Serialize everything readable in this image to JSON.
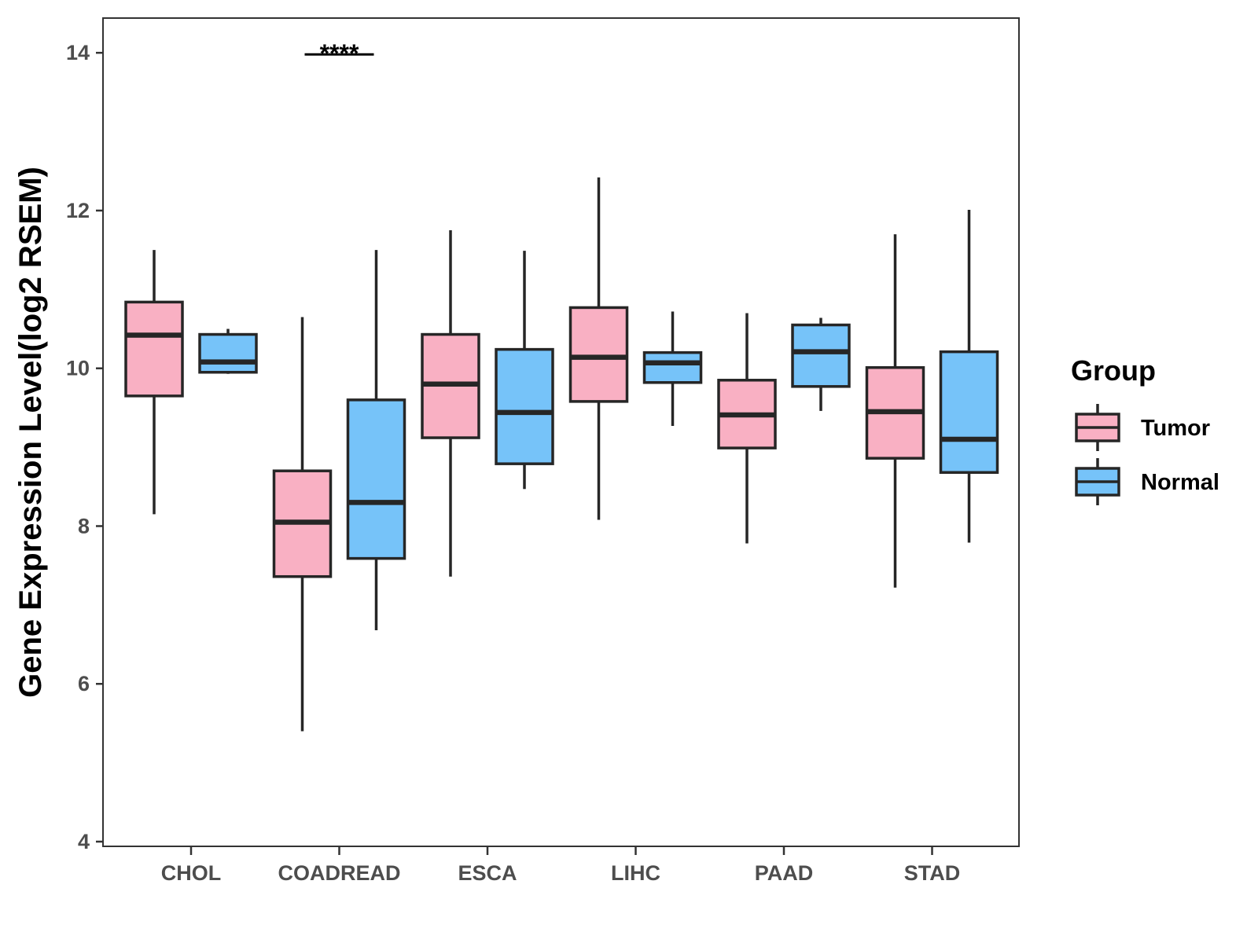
{
  "chart_data": {
    "type": "boxplot",
    "title": "",
    "xlabel": "",
    "ylabel": "Gene Expression Level(log2 RSEM)",
    "ylim": [
      4,
      14.5
    ],
    "yticks": [
      4,
      6,
      8,
      10,
      12,
      14
    ],
    "categories": [
      "CHOL",
      "COADREAD",
      "ESCA",
      "LIHC",
      "PAAD",
      "STAD"
    ],
    "legend": {
      "title": "Group",
      "position": "right"
    },
    "series": [
      {
        "name": "Tumor",
        "color": "#F9B0C3",
        "boxes": [
          {
            "min": 8.15,
            "q1": 9.65,
            "median": 10.42,
            "q3": 10.84,
            "max": 11.5
          },
          {
            "min": 5.4,
            "q1": 7.36,
            "median": 8.05,
            "q3": 8.7,
            "max": 10.65
          },
          {
            "min": 7.36,
            "q1": 9.12,
            "median": 9.8,
            "q3": 10.43,
            "max": 11.75
          },
          {
            "min": 8.08,
            "q1": 9.58,
            "median": 10.14,
            "q3": 10.77,
            "max": 12.42
          },
          {
            "min": 7.78,
            "q1": 8.99,
            "median": 9.41,
            "q3": 9.85,
            "max": 10.7
          },
          {
            "min": 7.22,
            "q1": 8.86,
            "median": 9.45,
            "q3": 10.01,
            "max": 11.7
          }
        ]
      },
      {
        "name": "Normal",
        "color": "#76C3F9",
        "boxes": [
          {
            "min": 9.93,
            "q1": 9.95,
            "median": 10.08,
            "q3": 10.43,
            "max": 10.5
          },
          {
            "min": 6.68,
            "q1": 7.59,
            "median": 8.3,
            "q3": 9.6,
            "max": 11.5
          },
          {
            "min": 8.47,
            "q1": 8.79,
            "median": 9.44,
            "q3": 10.24,
            "max": 11.49
          },
          {
            "min": 9.27,
            "q1": 9.82,
            "median": 10.07,
            "q3": 10.2,
            "max": 10.72
          },
          {
            "min": 9.46,
            "q1": 9.77,
            "median": 10.21,
            "q3": 10.55,
            "max": 10.64
          },
          {
            "min": 7.79,
            "q1": 8.68,
            "median": 9.1,
            "q3": 10.21,
            "max": 12.01
          }
        ]
      }
    ],
    "annotations": [
      {
        "category": "COADREAD",
        "label": "****",
        "y": 14.0
      }
    ]
  }
}
